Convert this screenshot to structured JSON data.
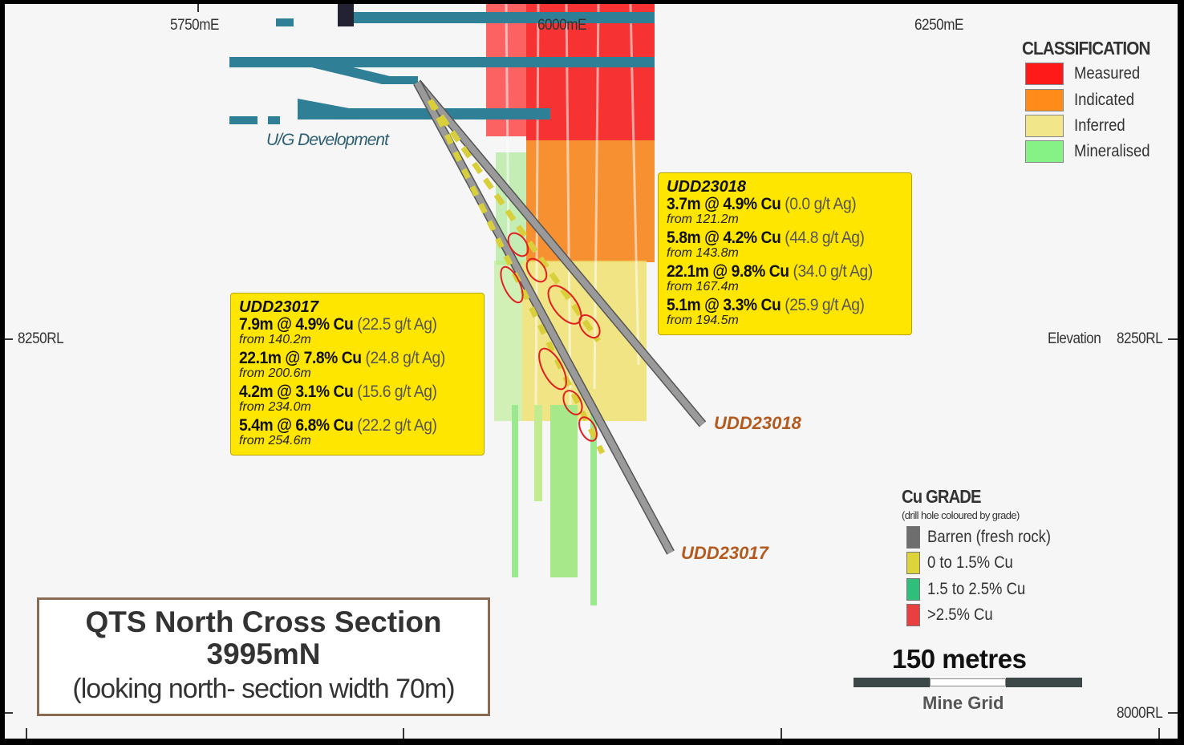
{
  "axes": {
    "x_labels": [
      "5750mE",
      "6000mE",
      "6250mE"
    ],
    "y_left": [
      "8250RL"
    ],
    "y_right": [
      "Elevation",
      "8250RL",
      "8000RL"
    ]
  },
  "ug_label": "U/G Development",
  "classification": {
    "title": "CLASSIFICATION",
    "items": [
      {
        "label": "Measured",
        "color": "#ff1a1a"
      },
      {
        "label": "Indicated",
        "color": "#ff8c1a"
      },
      {
        "label": "Inferred",
        "color": "#f2e68a"
      },
      {
        "label": "Mineralised",
        "color": "#86f286"
      }
    ]
  },
  "cu_grade": {
    "title": "Cu GRADE",
    "subtitle": "(drill hole coloured by grade)",
    "items": [
      {
        "label": "Barren (fresh rock)",
        "color": "#6e6e6e"
      },
      {
        "label": "0  to 1.5% Cu",
        "color": "#dcd43a"
      },
      {
        "label": "1.5  to 2.5% Cu",
        "color": "#2fbf7a"
      },
      {
        "label": ">2.5% Cu",
        "color": "#e84040"
      }
    ]
  },
  "scale": {
    "label": "150 metres",
    "grid": "Mine Grid"
  },
  "holes": [
    {
      "name": "UDD23018",
      "intercepts": [
        {
          "main": "3.7m @ 4.9% Cu",
          "ag": "(0.0 g/t Ag)",
          "from": "from 121.2m"
        },
        {
          "main": "5.8m @ 4.2% Cu",
          "ag": "(44.8 g/t Ag)",
          "from": "from 143.8m"
        },
        {
          "main": "22.1m @ 9.8% Cu",
          "ag": "(34.0 g/t Ag)",
          "from": "from 167.4m"
        },
        {
          "main": "5.1m @ 3.3% Cu",
          "ag": "(25.9 g/t Ag)",
          "from": "from 194.5m"
        }
      ]
    },
    {
      "name": "UDD23017",
      "intercepts": [
        {
          "main": "7.9m @ 4.9% Cu",
          "ag": "(22.5 g/t Ag)",
          "from": "from 140.2m"
        },
        {
          "main": "22.1m @ 7.8% Cu",
          "ag": "(24.8 g/t Ag)",
          "from": "from 200.6m"
        },
        {
          "main": "4.2m @ 3.1% Cu",
          "ag": "(15.6 g/t Ag)",
          "from": "from 234.0m"
        },
        {
          "main": "5.4m @ 6.8% Cu",
          "ag": "(22.2 g/t Ag)",
          "from": "from 254.6m"
        }
      ]
    }
  ],
  "title": {
    "line1": "QTS North Cross Section",
    "line2": "3995mN",
    "line3": "(looking north- section width 70m)"
  }
}
